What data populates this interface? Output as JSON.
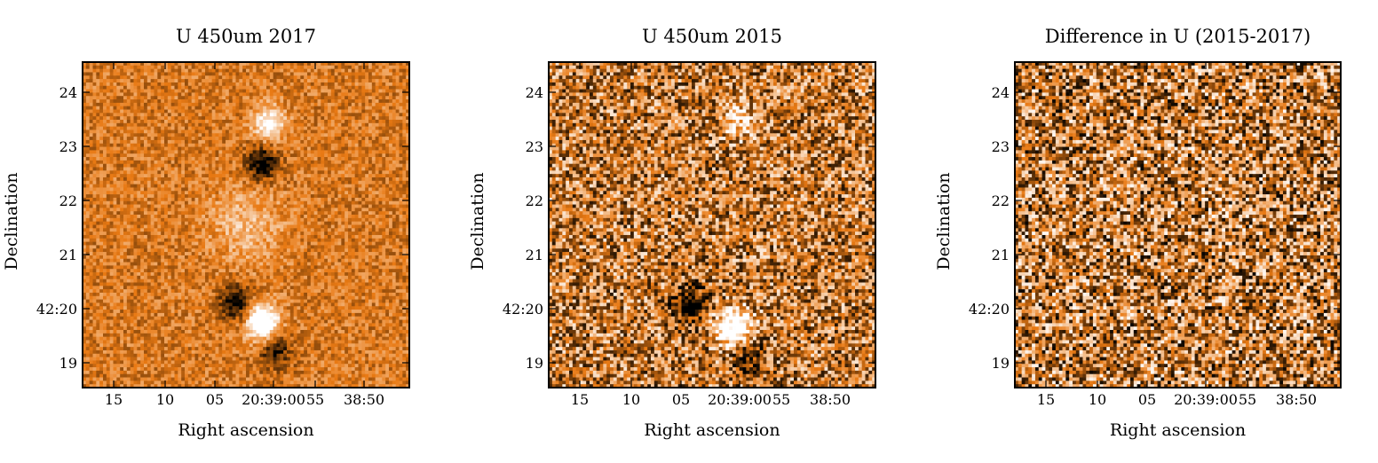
{
  "chart_data": [
    {
      "type": "heatmap",
      "title": "U 450um 2017",
      "xlabel": "Right ascension",
      "ylabel": "Declination",
      "xticks": [
        "15",
        "10",
        "05",
        "20:39:00",
        "55",
        "38:50"
      ],
      "yticks": [
        "24",
        "23",
        "22",
        "21",
        "42:20",
        "19"
      ],
      "grid": false,
      "colormap": "black-orange-white",
      "noise_level": 0.18,
      "features": [
        {
          "kind": "bright",
          "label": "source-north",
          "x": 0.57,
          "y": 0.19,
          "amp": 0.55
        },
        {
          "kind": "bright",
          "label": "filament",
          "x": 0.5,
          "y": 0.5,
          "amp": 0.25
        },
        {
          "kind": "bright",
          "label": "source-south",
          "x": 0.55,
          "y": 0.8,
          "amp": 0.85
        },
        {
          "kind": "dark",
          "label": "dark-north",
          "x": 0.55,
          "y": 0.31,
          "amp": 0.55
        },
        {
          "kind": "dark",
          "label": "dark-mid",
          "x": 0.47,
          "y": 0.74,
          "amp": 0.5
        },
        {
          "kind": "dark",
          "label": "dark-south",
          "x": 0.59,
          "y": 0.89,
          "amp": 0.4
        }
      ]
    },
    {
      "type": "heatmap",
      "title": "U 450um 2015",
      "xlabel": "Right ascension",
      "ylabel": "Declination",
      "xticks": [
        "15",
        "10",
        "05",
        "20:39:00",
        "55",
        "38:50"
      ],
      "yticks": [
        "24",
        "23",
        "22",
        "21",
        "42:20",
        "19"
      ],
      "grid": false,
      "colormap": "black-orange-white",
      "noise_level": 0.42,
      "features": [
        {
          "kind": "bright",
          "label": "source-north",
          "x": 0.58,
          "y": 0.18,
          "amp": 0.35
        },
        {
          "kind": "bright",
          "label": "source-south",
          "x": 0.57,
          "y": 0.82,
          "amp": 0.9
        },
        {
          "kind": "dark",
          "label": "dark-mid",
          "x": 0.43,
          "y": 0.74,
          "amp": 0.55
        },
        {
          "kind": "dark",
          "label": "dark-south",
          "x": 0.61,
          "y": 0.9,
          "amp": 0.4
        }
      ]
    },
    {
      "type": "heatmap",
      "title": "Difference in U (2015-2017)",
      "xlabel": "Right ascension",
      "ylabel": "Declination",
      "xticks": [
        "15",
        "10",
        "05",
        "20:39:00",
        "55",
        "38:50"
      ],
      "yticks": [
        "24",
        "23",
        "22",
        "21",
        "42:20",
        "19"
      ],
      "grid": false,
      "colormap": "black-orange-white",
      "noise_level": 0.48,
      "features": []
    }
  ]
}
